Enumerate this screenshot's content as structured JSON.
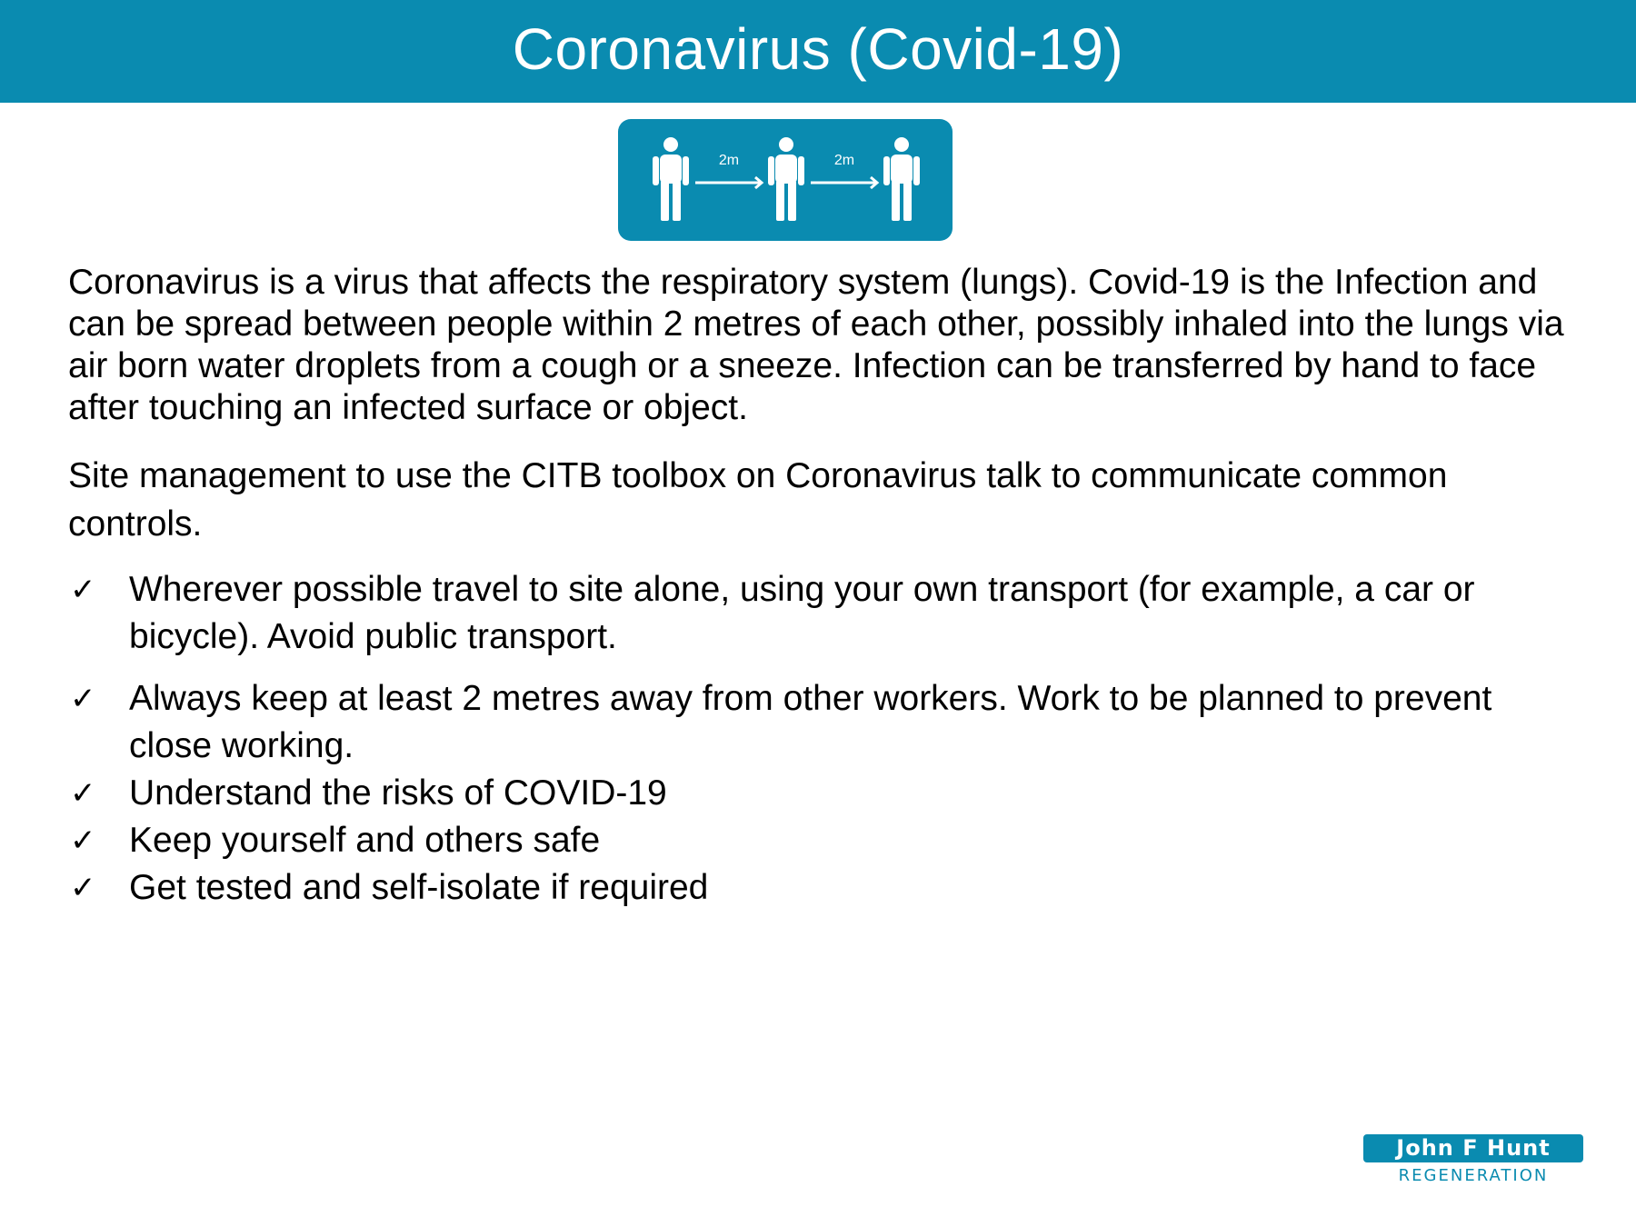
{
  "header": {
    "title": "Coronavirus (Covid-19)"
  },
  "distancing_graphic": {
    "icon": "social-distancing-icon",
    "distance_labels": [
      "2m",
      "2m"
    ]
  },
  "body": {
    "paragraphs": [
      "Coronavirus is a virus that affects the respiratory system (lungs). Covid-19 is the Infection and can be spread between people within 2 metres of each other, possibly inhaled into the lungs via air born water droplets from a cough or a sneeze. Infection can be transferred by hand to face after touching an infected surface or object.",
      "Site management to use the CITB toolbox on Coronavirus talk to communicate common controls."
    ],
    "checklist": [
      "Wherever possible travel to site alone, using your own transport (for example, a car or bicycle). Avoid public transport.",
      "Always keep at least 2 metres away from other workers. Work to be planned to prevent close working.",
      "Understand the risks of COVID-19",
      "Keep yourself and others safe",
      "Get tested and self-isolate if required"
    ],
    "check_glyph": "✓"
  },
  "logo": {
    "name": "John F Hunt",
    "subtitle": "REGENERATION"
  },
  "colors": {
    "brand": "#0a8bb0",
    "text": "#000000",
    "background": "#ffffff"
  }
}
